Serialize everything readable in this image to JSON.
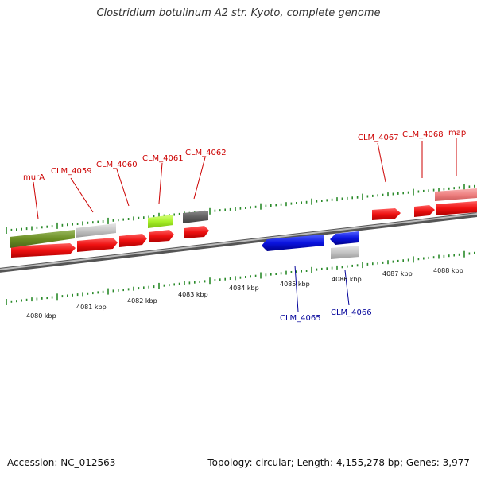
{
  "title": "Clostridium botulinum A2 str. Kyoto, complete genome",
  "footer": {
    "accession": "Accession: NC_012563",
    "summary": "Topology: circular; Length: 4,155,278 bp; Genes: 3,977"
  },
  "colors": {
    "cds": "#ee1111",
    "backbone": "#888888",
    "tick": "#2a8a2a",
    "label_forward": "#cc0000",
    "label_reverse": "#000099",
    "reverse_gene": "#0a14e0"
  },
  "ruler_labels": [
    "4080 kbp",
    "4081 kbp",
    "4082 kbp",
    "4083 kbp",
    "4084 kbp",
    "4085 kbp",
    "4086 kbp",
    "4087 kbp",
    "4088 kbp"
  ],
  "gene_labels": {
    "murA": "murA",
    "clm4059": "CLM_4059",
    "clm4060": "CLM_4060",
    "clm4061": "CLM_4061",
    "clm4062": "CLM_4062",
    "clm4065": "CLM_4065",
    "clm4066": "CLM_4066",
    "clm4067": "CLM_4067",
    "clm4068": "CLM_4068",
    "map": "map"
  }
}
